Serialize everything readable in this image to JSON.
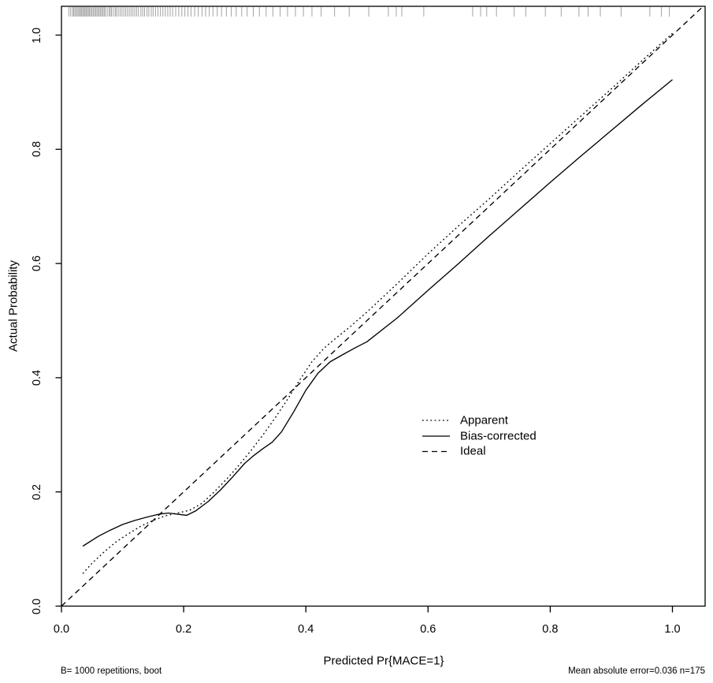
{
  "chart_data": {
    "type": "line",
    "title": "",
    "xlabel": "Predicted Pr{MACE=1}",
    "ylabel": "Actual Probability",
    "xlim": [
      0,
      1.05
    ],
    "ylim": [
      0,
      1.05
    ],
    "xticks": [
      "0.0",
      "0.2",
      "0.4",
      "0.6",
      "0.8",
      "1.0"
    ],
    "yticks": [
      "0.0",
      "0.2",
      "0.4",
      "0.6",
      "0.8",
      "1.0"
    ],
    "xtick_values": [
      0.0,
      0.2,
      0.4,
      0.6,
      0.8,
      1.0
    ],
    "ytick_values": [
      0.0,
      0.2,
      0.4,
      0.6,
      0.8,
      1.0
    ],
    "grid": false,
    "box": true,
    "legend_position": "inside-middle-right",
    "series": [
      {
        "name": "Apparent",
        "style": "dotted",
        "x": [
          0.035,
          0.05,
          0.07,
          0.09,
          0.11,
          0.13,
          0.15,
          0.17,
          0.19,
          0.21,
          0.23,
          0.25,
          0.27,
          0.29,
          0.31,
          0.33,
          0.35,
          0.37,
          0.39,
          0.41,
          0.43,
          0.45,
          0.47,
          0.5,
          0.55,
          0.6,
          0.65,
          0.7,
          0.75,
          0.8,
          0.85,
          0.9,
          0.95,
          1.0
        ],
        "y": [
          0.057,
          0.075,
          0.095,
          0.113,
          0.127,
          0.14,
          0.15,
          0.158,
          0.163,
          0.168,
          0.18,
          0.2,
          0.222,
          0.246,
          0.272,
          0.3,
          0.33,
          0.362,
          0.396,
          0.428,
          0.452,
          0.47,
          0.487,
          0.515,
          0.565,
          0.617,
          0.666,
          0.713,
          0.762,
          0.81,
          0.858,
          0.906,
          0.955,
          1.003
        ]
      },
      {
        "name": "Bias-corrected",
        "style": "solid",
        "x": [
          0.035,
          0.06,
          0.08,
          0.1,
          0.12,
          0.14,
          0.16,
          0.175,
          0.19,
          0.205,
          0.22,
          0.24,
          0.26,
          0.28,
          0.3,
          0.315,
          0.33,
          0.345,
          0.36,
          0.38,
          0.4,
          0.42,
          0.44,
          0.46,
          0.48,
          0.5,
          0.55,
          0.6,
          0.65,
          0.7,
          0.75,
          0.8,
          0.85,
          0.9,
          0.95,
          1.0
        ],
        "y": [
          0.105,
          0.122,
          0.133,
          0.143,
          0.15,
          0.156,
          0.161,
          0.163,
          0.161,
          0.159,
          0.167,
          0.183,
          0.203,
          0.226,
          0.25,
          0.264,
          0.276,
          0.287,
          0.305,
          0.34,
          0.378,
          0.408,
          0.428,
          0.44,
          0.452,
          0.463,
          0.505,
          0.553,
          0.6,
          0.648,
          0.695,
          0.742,
          0.788,
          0.833,
          0.878,
          0.922
        ]
      },
      {
        "name": "Ideal",
        "style": "dashed",
        "x": [
          0,
          1.06
        ],
        "y": [
          0,
          1.06
        ]
      }
    ],
    "rug_x": [
      0.012,
      0.015,
      0.018,
      0.02,
      0.022,
      0.024,
      0.026,
      0.028,
      0.03,
      0.031,
      0.033,
      0.035,
      0.036,
      0.038,
      0.04,
      0.041,
      0.043,
      0.045,
      0.046,
      0.048,
      0.05,
      0.052,
      0.054,
      0.056,
      0.058,
      0.06,
      0.062,
      0.064,
      0.066,
      0.068,
      0.07,
      0.072,
      0.075,
      0.078,
      0.08,
      0.082,
      0.085,
      0.088,
      0.09,
      0.093,
      0.096,
      0.099,
      0.102,
      0.105,
      0.108,
      0.111,
      0.114,
      0.117,
      0.12,
      0.123,
      0.126,
      0.13,
      0.133,
      0.136,
      0.14,
      0.143,
      0.147,
      0.15,
      0.154,
      0.158,
      0.162,
      0.166,
      0.17,
      0.174,
      0.178,
      0.182,
      0.187,
      0.192,
      0.197,
      0.202,
      0.207,
      0.212,
      0.218,
      0.224,
      0.23,
      0.236,
      0.242,
      0.248,
      0.255,
      0.262,
      0.27,
      0.278,
      0.286,
      0.295,
      0.304,
      0.314,
      0.324,
      0.335,
      0.346,
      0.358,
      0.37,
      0.383,
      0.396,
      0.41,
      0.425,
      0.447,
      0.471,
      0.503,
      0.535,
      0.548,
      0.557,
      0.593,
      0.673,
      0.686,
      0.696,
      0.712,
      0.741,
      0.76,
      0.792,
      0.818,
      0.847,
      0.862,
      0.882,
      0.916,
      0.963,
      0.982,
      0.995
    ],
    "footnotes": {
      "left": "B= 1000 repetitions, boot",
      "right": "Mean absolute error=0.036 n=175"
    }
  },
  "colors": {
    "line": "#000000",
    "rug": "#a3a3a3",
    "background": "#ffffff"
  }
}
